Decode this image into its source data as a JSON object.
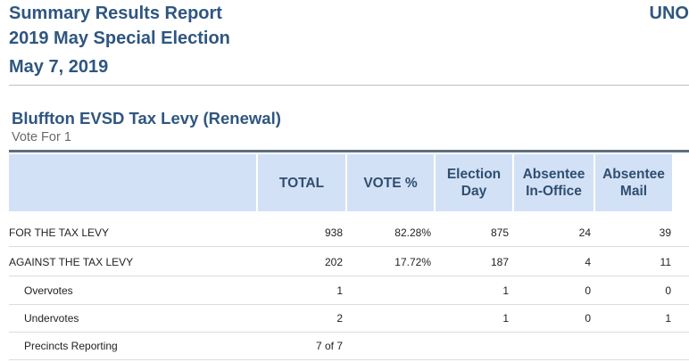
{
  "header": {
    "line1": "Summary Results Report",
    "line2": "2019 May Special Election",
    "line3": "May 7, 2019",
    "right_text": "UNO"
  },
  "contest": {
    "title": "Bluffton EVSD Tax Levy (Renewal)",
    "vote_for": "Vote For 1"
  },
  "table": {
    "columns": [
      "",
      "TOTAL",
      "VOTE %",
      "Election\nDay",
      "Absentee\nIn-Office",
      "Absentee\nMail"
    ],
    "rows": [
      {
        "label": "FOR THE TAX LEVY",
        "total": "938",
        "pct": "82.28%",
        "eday": "875",
        "in_office": "24",
        "mail": "39"
      },
      {
        "label": "AGAINST THE TAX LEVY",
        "total": "202",
        "pct": "17.72%",
        "eday": "187",
        "in_office": "4",
        "mail": "11"
      },
      {
        "label": "Overvotes",
        "total": "1",
        "pct": "",
        "eday": "1",
        "in_office": "0",
        "mail": "0"
      },
      {
        "label": "Undervotes",
        "total": "2",
        "pct": "",
        "eday": "1",
        "in_office": "0",
        "mail": "1"
      },
      {
        "label": "Precincts Reporting",
        "total": "7 of 7",
        "pct": "",
        "eday": "",
        "in_office": "",
        "mail": ""
      }
    ]
  }
}
